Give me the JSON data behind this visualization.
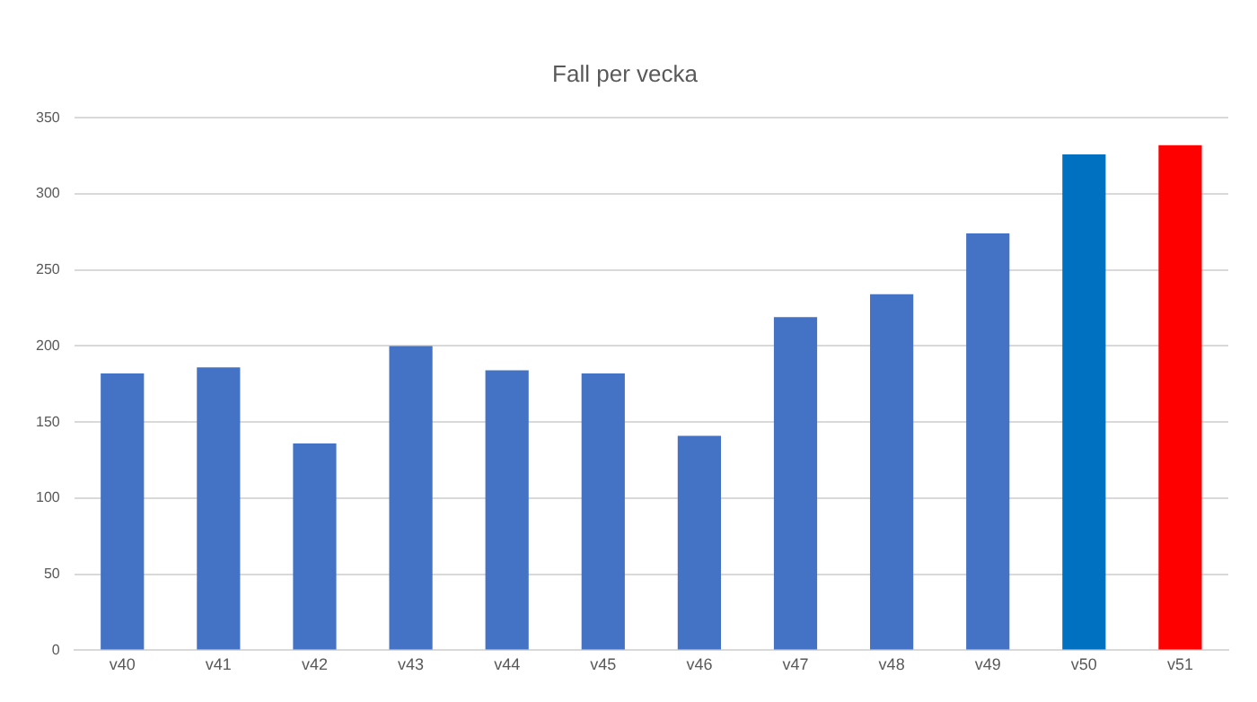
{
  "chart_data": {
    "type": "bar",
    "title": "Fall per vecka",
    "categories": [
      "v40",
      "v41",
      "v42",
      "v43",
      "v44",
      "v45",
      "v46",
      "v47",
      "v48",
      "v49",
      "v50",
      "v51"
    ],
    "values": [
      182,
      186,
      136,
      200,
      184,
      182,
      141,
      219,
      234,
      274,
      326,
      332
    ],
    "colors": [
      "#4472c4",
      "#4472c4",
      "#4472c4",
      "#4472c4",
      "#4472c4",
      "#4472c4",
      "#4472c4",
      "#4472c4",
      "#4472c4",
      "#4472c4",
      "#0070c0",
      "#ff0000"
    ],
    "ylim": [
      0,
      350
    ],
    "yticks": [
      0,
      50,
      100,
      150,
      200,
      250,
      300,
      350
    ],
    "grid": "y",
    "legend": false
  }
}
